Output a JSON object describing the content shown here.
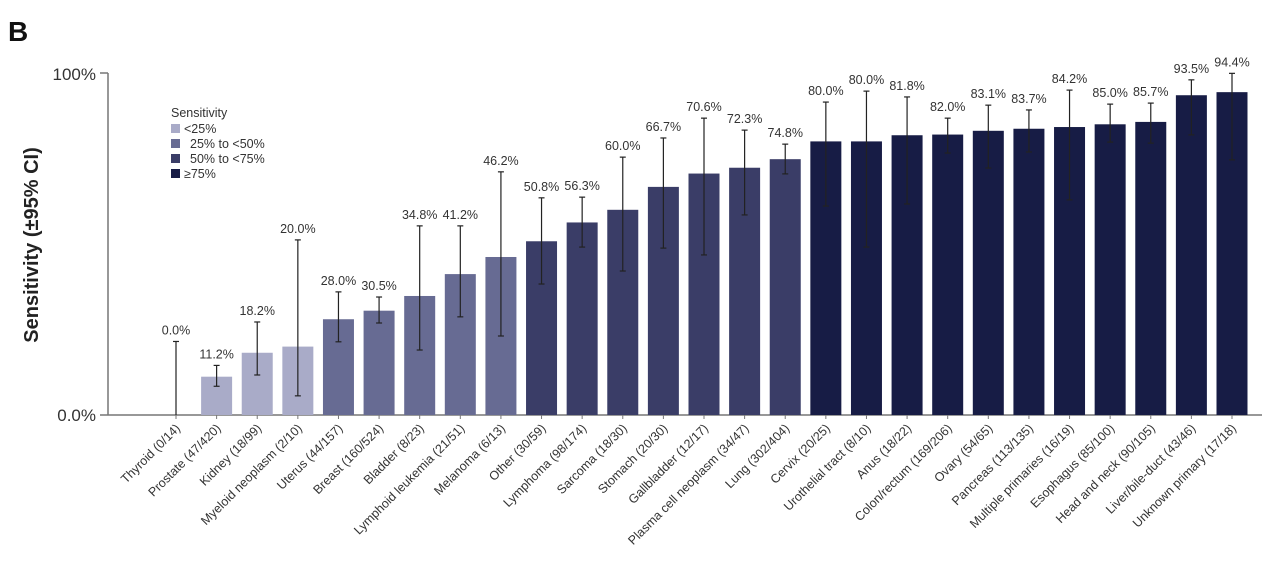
{
  "panel_label": "B",
  "chart_data": {
    "type": "bar",
    "ylabel": "Sensitivity (±95% CI)",
    "ylim": [
      0,
      100
    ],
    "yticks": [
      "0.0%",
      "100%"
    ],
    "grid": false,
    "legend": {
      "title": "Sensitivity",
      "placement": "top-left",
      "entries": [
        {
          "label": "<25%",
          "color": "#a9abc8"
        },
        {
          "label": "25% to <50%",
          "color": "#676b93"
        },
        {
          "label": "50% to <75%",
          "color": "#3a3d67"
        },
        {
          "label": "≥75%",
          "color": "#171c45"
        }
      ]
    },
    "categories": [
      "Thyroid (0/14)",
      "Prostate (47/420)",
      "Kidney (18/99)",
      "Myeloid neoplasm (2/10)",
      "Uterus (44/157)",
      "Breast (160/524)",
      "Bladder (8/23)",
      "Lymphoid leukemia (21/51)",
      "Melanoma (6/13)",
      "Other (30/59)",
      "Lymphoma (98/174)",
      "Sarcoma (18/30)",
      "Stomach (20/30)",
      "Gallbladder (12/17)",
      "Plasma cell neoplasm (34/47)",
      "Lung (302/404)",
      "Cervix (20/25)",
      "Urothelial tract (8/10)",
      "Anus (18/22)",
      "Colon/rectum (169/206)",
      "Ovary (54/65)",
      "Pancreas (113/135)",
      "Multiple primaries (16/19)",
      "Esophagus (85/100)",
      "Head and neck (90/105)",
      "Liver/bile-duct (43/46)",
      "Unknown primary (17/18)"
    ],
    "values": [
      0.0,
      11.2,
      18.2,
      20.0,
      28.0,
      30.5,
      34.8,
      41.2,
      46.2,
      50.8,
      56.3,
      60.0,
      66.7,
      70.6,
      72.3,
      74.8,
      80.0,
      80.0,
      81.8,
      82.0,
      83.1,
      83.7,
      84.2,
      85.0,
      85.7,
      93.5,
      94.4
    ],
    "data_labels": [
      "0.0%",
      "11.2%",
      "18.2%",
      "20.0%",
      "28.0%",
      "30.5%",
      "34.8%",
      "41.2%",
      "46.2%",
      "50.8%",
      "56.3%",
      "60.0%",
      "66.7%",
      "70.6%",
      "72.3%",
      "74.8%",
      "80.0%",
      "80.0%",
      "81.8%",
      "82.0%",
      "83.1%",
      "83.7%",
      "84.2%",
      "85.0%",
      "85.7%",
      "93.5%",
      "94.4%"
    ],
    "ci_lower": [
      0,
      8.4,
      11.7,
      5.6,
      21.4,
      26.9,
      19.0,
      28.7,
      23.1,
      38.3,
      49.1,
      42.1,
      48.8,
      46.8,
      58.5,
      70.5,
      61.1,
      49.1,
      61.7,
      76.6,
      72.2,
      76.9,
      62.9,
      79.8,
      79.5,
      81.9,
      74.6
    ],
    "ci_upper": [
      21.5,
      14.5,
      27.2,
      51.2,
      36.0,
      34.5,
      55.3,
      55.3,
      71.1,
      63.5,
      63.7,
      75.4,
      81.0,
      86.8,
      83.3,
      79.2,
      91.5,
      94.7,
      93.0,
      86.8,
      90.6,
      89.2,
      95.0,
      90.9,
      91.2,
      98.0,
      99.9
    ]
  }
}
